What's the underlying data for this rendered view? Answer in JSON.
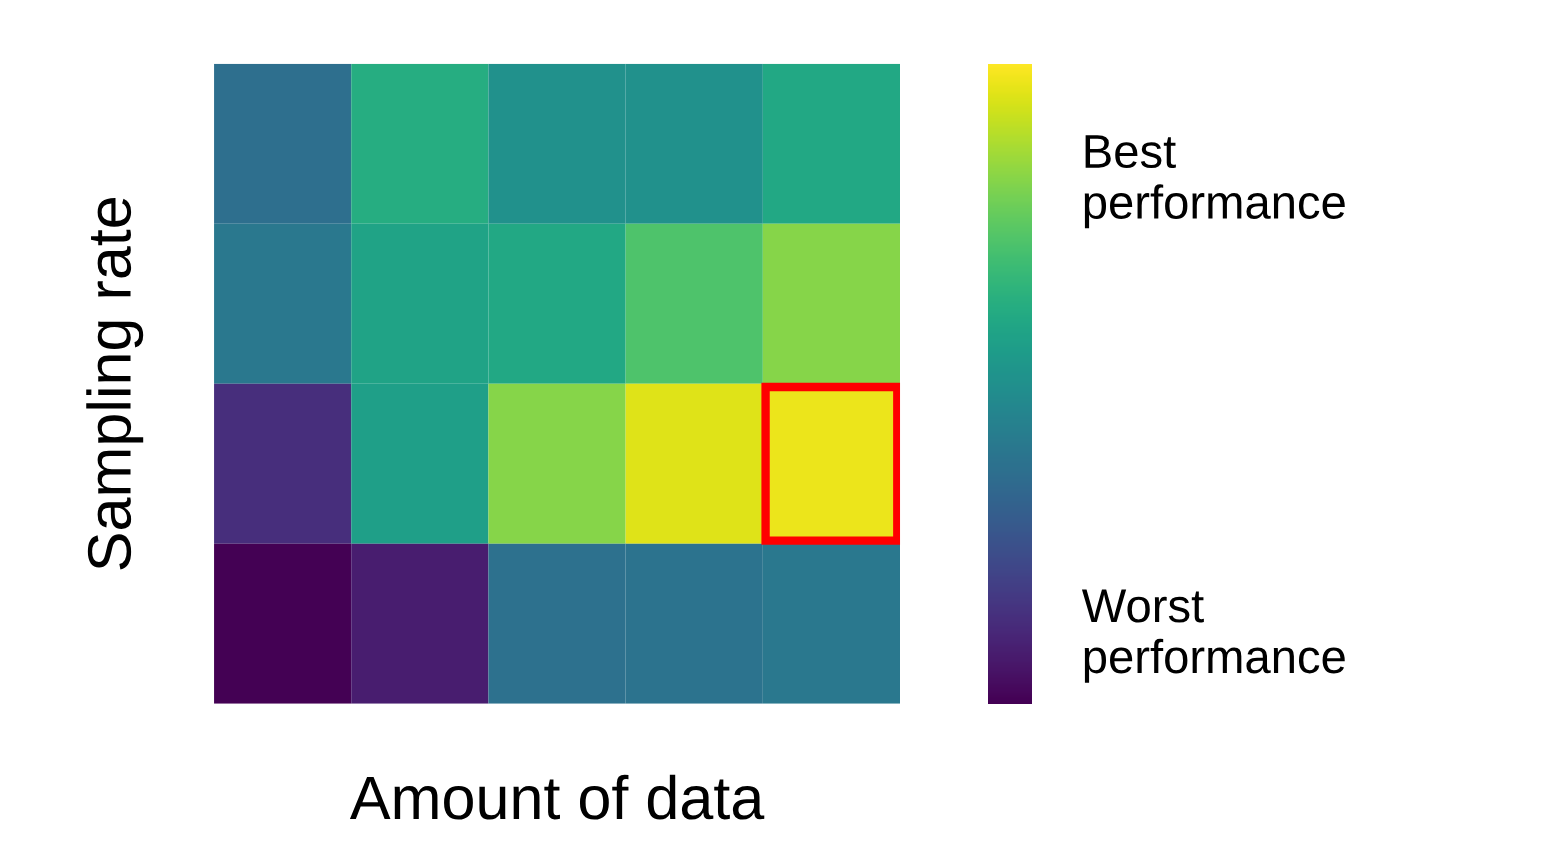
{
  "chart_data": {
    "type": "heatmap",
    "xlabel": "Amount of data",
    "ylabel": "Sampling rate",
    "categories": [
      null,
      null,
      null,
      null,
      null
    ],
    "y_categories": [
      null,
      null,
      null,
      null
    ],
    "cells": [
      [
        0.36,
        0.62,
        0.5,
        0.5,
        0.6
      ],
      [
        0.4,
        0.58,
        0.6,
        0.72,
        0.82
      ],
      [
        0.13,
        0.56,
        0.82,
        0.95,
        0.97
      ],
      [
        0.0,
        0.08,
        0.37,
        0.38,
        0.4
      ]
    ],
    "clim": [
      0,
      1
    ],
    "cticks": [
      {
        "value": 0.83,
        "label": "Best\nperformance"
      },
      {
        "value": 0.12,
        "label": "Worst\nperformance"
      }
    ]
  }
}
